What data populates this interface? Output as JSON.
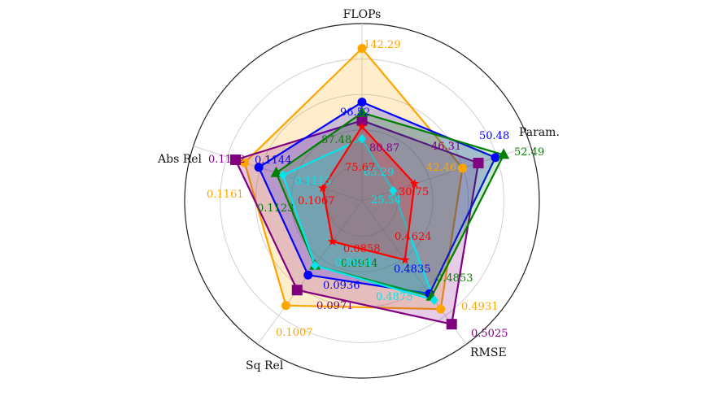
{
  "chart_data": {
    "type": "radar",
    "axes": [
      "FLOPs",
      "Param.",
      "RMSE",
      "Sq Rel",
      "Abs Rel"
    ],
    "grid": true,
    "legend": "none",
    "series": [
      {
        "color": "#ffa500",
        "marker": "circle",
        "values": [
          142.29,
          42.46,
          0.4931,
          0.1007,
          0.1161
        ],
        "labels": [
          "142.29",
          "42.46",
          "0.4931",
          "0.1007",
          "0.1161"
        ]
      },
      {
        "color": "#800080",
        "marker": "square",
        "values": [
          80.87,
          46.31,
          0.5025,
          0.0971,
          0.1172
        ],
        "labels": [
          "80.87",
          "46.31",
          "0.5025",
          "0.0971",
          "0.1172"
        ]
      },
      {
        "color": "#0000ff",
        "marker": "circle",
        "values": [
          96.52,
          50.48,
          0.4835,
          0.0936,
          0.1144
        ],
        "labels": [
          "96.52",
          "50.48",
          "0.4835",
          "0.0936",
          "0.1144"
        ]
      },
      {
        "color": "#008000",
        "marker": "triangle",
        "values": [
          87.48,
          52.49,
          0.4853,
          0.0914,
          0.1123
        ],
        "labels": [
          "87.48",
          "52.49",
          "0.4853",
          "0.0914",
          "0.1123"
        ]
      },
      {
        "color": "#00e5ee",
        "marker": "diamond",
        "values": [
          65.29,
          25.54,
          0.4875,
          0.0914,
          0.1115
        ],
        "labels": [
          "65.29",
          "25.54",
          "0.4875",
          "0.0914",
          "0.1115"
        ]
      },
      {
        "color": "#ff0000",
        "marker": "star",
        "values": [
          75.67,
          30.75,
          0.4624,
          0.0858,
          0.1067
        ],
        "labels": [
          "75.67",
          "30.75",
          "0.4624",
          "0.0858",
          "0.1067"
        ]
      }
    ]
  }
}
